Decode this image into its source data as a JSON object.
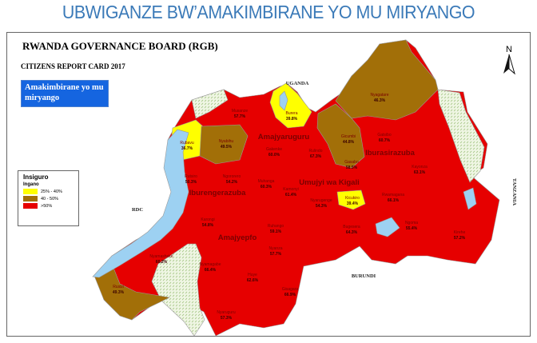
{
  "page_title": "UBWIGANZE BW’AMAKIMBIRANE YO MU MIRYANGO",
  "map": {
    "organization": "RWANDA GOVERNANCE BOARD (RGB)",
    "report": "CITIZENS REPORT CARD 2017",
    "indicator": "Amakimbirane yo mu miryango",
    "north_label": "N",
    "legend": {
      "title": "Insiguro",
      "subtitle": "Ingano",
      "classes": [
        {
          "label": "25% - 40%",
          "color": "#ffff00"
        },
        {
          "label": "40 - 50%",
          "color": "#a26f08"
        },
        {
          "label": ">50%",
          "color": "#e60000"
        }
      ]
    },
    "colors": {
      "lake": "#9dd1f2",
      "park": "#eaf3dc",
      "district": "#e60000"
    },
    "neighbors": [
      "UGANDA",
      "RDC",
      "BURUNDI",
      "TANZANIA"
    ],
    "provinces": [
      "Amajyaruguru",
      "Iburasirazuba",
      "Iburengerazuba",
      "Umujyi wa Kigali",
      "Amajyepfo"
    ],
    "districts": [
      {
        "name": "Musanze",
        "value": "57.7%"
      },
      {
        "name": "Burera",
        "value": "39.8%"
      },
      {
        "name": "Rubavu",
        "value": "36.7%"
      },
      {
        "name": "Nyabihu",
        "value": "49.5%"
      },
      {
        "name": "Gakenke",
        "value": "60.0%"
      },
      {
        "name": "Rulindo",
        "value": "67.3%"
      },
      {
        "name": "Gicumbi",
        "value": "44.8%"
      },
      {
        "name": "Nyagatare",
        "value": "46.3%"
      },
      {
        "name": "Gatsibo",
        "value": "60.7%"
      },
      {
        "name": "Kayonza",
        "value": "63.1%"
      },
      {
        "name": "Rutsiro",
        "value": "50.3%"
      },
      {
        "name": "Ngororero",
        "value": "54.2%"
      },
      {
        "name": "Muhanga",
        "value": "60.3%"
      },
      {
        "name": "Kamonyi",
        "value": "61.4%"
      },
      {
        "name": "Gasabo",
        "value": "58.5%"
      },
      {
        "name": "Nyarugenge",
        "value": "54.3%"
      },
      {
        "name": "Kicukiro",
        "value": "39.4%"
      },
      {
        "name": "Rwamagana",
        "value": "66.1%"
      },
      {
        "name": "Karongi",
        "value": "54.8%"
      },
      {
        "name": "Ruhango",
        "value": "59.1%"
      },
      {
        "name": "Nyanza",
        "value": "57.7%"
      },
      {
        "name": "Bugesera",
        "value": "64.3%"
      },
      {
        "name": "Ngoma",
        "value": "55.4%"
      },
      {
        "name": "Kirehe",
        "value": "57.2%"
      },
      {
        "name": "Nyamasheke",
        "value": "60.2%"
      },
      {
        "name": "Nyamagabe",
        "value": "66.4%"
      },
      {
        "name": "Huye",
        "value": "62.6%"
      },
      {
        "name": "Gisagara",
        "value": "66.9%"
      },
      {
        "name": "Rusizi",
        "value": "49.3%"
      },
      {
        "name": "Nyaruguru",
        "value": "57.3%"
      }
    ]
  }
}
